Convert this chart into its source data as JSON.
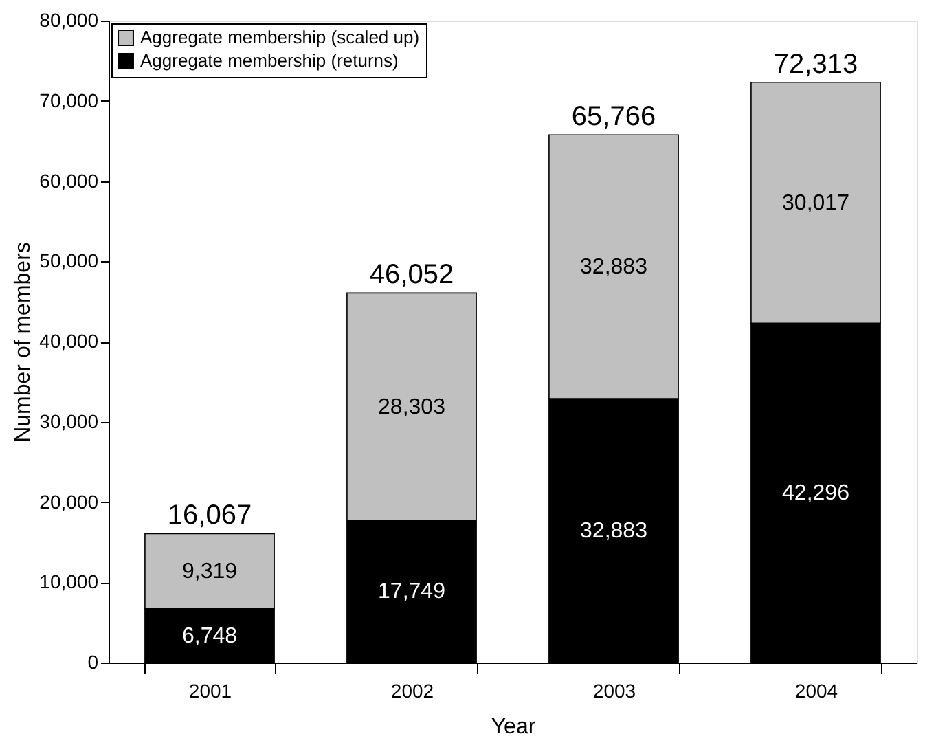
{
  "chart_data": {
    "type": "bar",
    "stacked": true,
    "xlabel": "Year",
    "ylabel": "Number of members",
    "categories": [
      "2001",
      "2002",
      "2003",
      "2004"
    ],
    "series": [
      {
        "name": "Aggregate membership (returns)",
        "color": "#000000",
        "values": [
          6748,
          17749,
          32883,
          42296
        ],
        "value_labels": [
          "6,748",
          "17,749",
          "32,883",
          "42,296"
        ]
      },
      {
        "name": "Aggregate membership (scaled up)",
        "color": "#c0c0c0",
        "values": [
          9319,
          28303,
          32883,
          30017
        ],
        "value_labels": [
          "9,319",
          "28,303",
          "32,883",
          "30,017"
        ]
      }
    ],
    "totals": [
      "16,067",
      "46,052",
      "65,766",
      "72,313"
    ],
    "ylim": [
      0,
      80000
    ],
    "yticks": [
      0,
      {
        "value": 10000,
        "label": "10,000"
      },
      {
        "value": 20000,
        "label": "20,000"
      },
      {
        "value": 30000,
        "label": "30,000"
      },
      {
        "value": 40000,
        "label": "40,000"
      },
      {
        "value": 50000,
        "label": "50,000"
      },
      {
        "value": 60000,
        "label": "60,000"
      },
      {
        "value": 70000,
        "label": "70,000"
      },
      {
        "value": 80000,
        "label": "80,000"
      }
    ],
    "grid": false,
    "legend": "top left"
  }
}
